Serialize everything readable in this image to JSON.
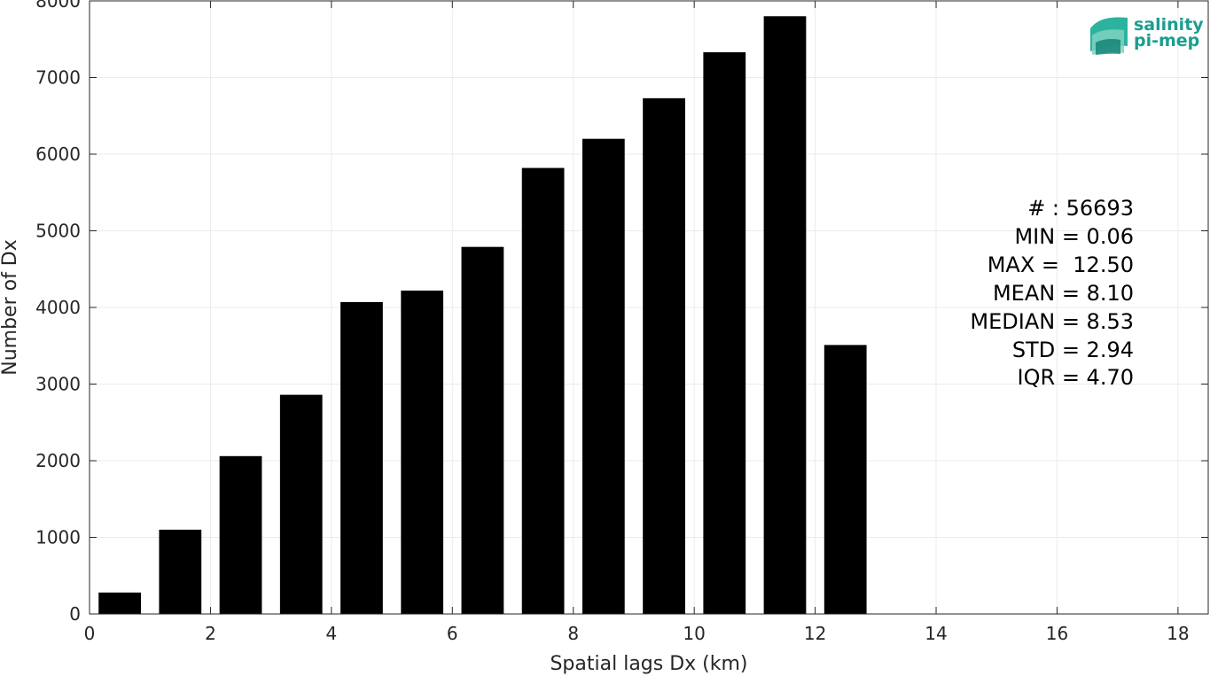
{
  "chart_data": {
    "type": "bar",
    "xlabel": "Spatial lags Dx (km)",
    "ylabel": "Number of Dx",
    "xlim": [
      0,
      18.5
    ],
    "ylim": [
      0,
      8000
    ],
    "xticks": [
      0,
      2,
      4,
      6,
      8,
      10,
      12,
      14,
      16,
      18
    ],
    "yticks": [
      0,
      1000,
      2000,
      3000,
      4000,
      5000,
      6000,
      7000,
      8000
    ],
    "bin_width": 1,
    "x": [
      0.5,
      1.5,
      2.5,
      3.5,
      4.5,
      5.5,
      6.5,
      7.5,
      8.5,
      9.5,
      10.5,
      11.5,
      12.5
    ],
    "values": [
      280,
      1100,
      2060,
      2860,
      4070,
      4220,
      4790,
      5820,
      6200,
      6730,
      7330,
      7800,
      3510
    ],
    "bar_color": "#000000",
    "grid": true
  },
  "stats": [
    "# : 56693",
    "MIN = 0.06",
    "MAX =  12.50",
    "MEAN = 8.10",
    "MEDIAN = 8.53",
    "STD = 2.94",
    "IQR = 4.70"
  ],
  "logo": {
    "line1": "salinity",
    "line2": "pi-mep",
    "color": "#1a9e8f"
  }
}
